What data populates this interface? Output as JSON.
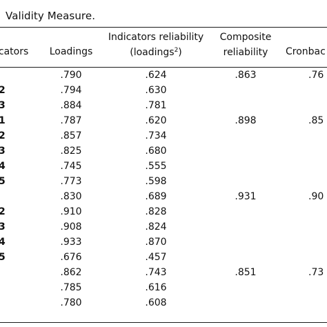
{
  "caption": "Validity Measure.",
  "headers": {
    "indicators": "icators",
    "loadings": "Loadings",
    "indicator_reliability_line1": "Indicators reliability",
    "indicator_reliability_line2": "(loadings",
    "indicator_reliability_sup": "2",
    "indicator_reliability_close": ")",
    "composite_line1": "Composite",
    "composite_line2": "reliability",
    "cronbach": "Cronbac"
  },
  "rows": [
    {
      "indicator": "",
      "loading": ".790",
      "reliability": ".624",
      "composite": ".863",
      "cronbach": ".76"
    },
    {
      "indicator": "2",
      "loading": ".794",
      "reliability": ".630",
      "composite": "",
      "cronbach": ""
    },
    {
      "indicator": "3",
      "loading": ".884",
      "reliability": ".781",
      "composite": "",
      "cronbach": ""
    },
    {
      "indicator": "1",
      "loading": ".787",
      "reliability": ".620",
      "composite": ".898",
      "cronbach": ".85"
    },
    {
      "indicator": "2",
      "loading": ".857",
      "reliability": ".734",
      "composite": "",
      "cronbach": ""
    },
    {
      "indicator": "3",
      "loading": ".825",
      "reliability": ".680",
      "composite": "",
      "cronbach": ""
    },
    {
      "indicator": "4",
      "loading": ".745",
      "reliability": ".555",
      "composite": "",
      "cronbach": ""
    },
    {
      "indicator": "5",
      "loading": ".773",
      "reliability": ".598",
      "composite": "",
      "cronbach": ""
    },
    {
      "indicator": "",
      "loading": ".830",
      "reliability": ".689",
      "composite": ".931",
      "cronbach": ".90"
    },
    {
      "indicator": "2",
      "loading": ".910",
      "reliability": ".828",
      "composite": "",
      "cronbach": ""
    },
    {
      "indicator": "3",
      "loading": ".908",
      "reliability": ".824",
      "composite": "",
      "cronbach": ""
    },
    {
      "indicator": "4",
      "loading": ".933",
      "reliability": ".870",
      "composite": "",
      "cronbach": ""
    },
    {
      "indicator": "5",
      "loading": ".676",
      "reliability": ".457",
      "composite": "",
      "cronbach": ""
    },
    {
      "indicator": "",
      "loading": ".862",
      "reliability": ".743",
      "composite": ".851",
      "cronbach": ".73"
    },
    {
      "indicator": "",
      "loading": ".785",
      "reliability": ".616",
      "composite": "",
      "cronbach": ""
    },
    {
      "indicator": "",
      "loading": ".780",
      "reliability": ".608",
      "composite": "",
      "cronbach": ""
    }
  ]
}
